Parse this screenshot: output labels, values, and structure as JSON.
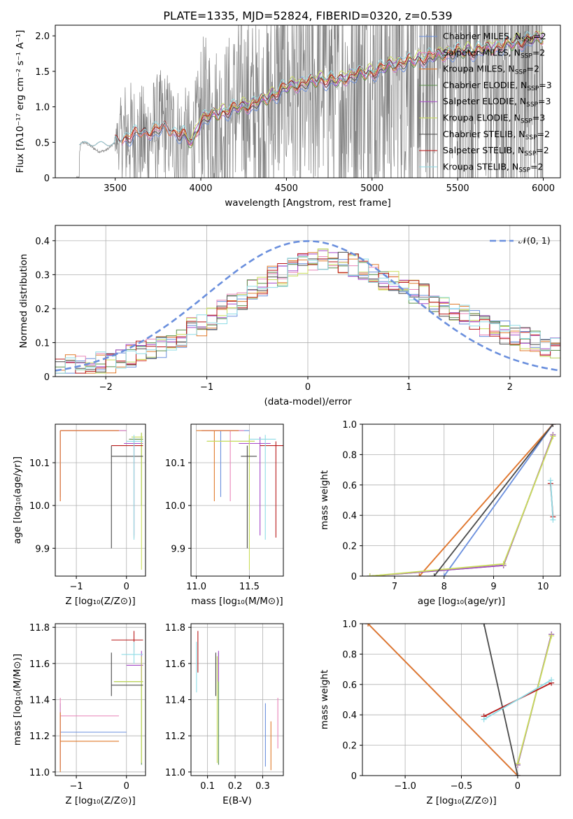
{
  "title": "PLATE=1335, MJD=52824, FIBERID=0320, z=0.539",
  "colors": {
    "Chabrier MILES": "#6a8fdd",
    "Salpeter MILES": "#e883b8",
    "Kroupa MILES": "#e07a2a",
    "Chabrier ELODIE": "#5a8f4a",
    "Salpeter ELODIE": "#a548c8",
    "Kroupa ELODIE": "#c9dd5a",
    "Chabrier STELIB": "#4a4a4a",
    "Salpeter STELIB": "#b81818",
    "Kroupa STELIB": "#8fdce6",
    "data": "#808080",
    "gauss": "#6a8fdd",
    "grid": "#b0b0b0"
  },
  "chart_data": [
    {
      "id": "spectrum",
      "type": "line",
      "xlabel": "wavelength [Angstrom, rest frame]",
      "ylabel": "Flux [fλ10⁻¹⁷ erg cm⁻² s⁻¹ A⁻¹]",
      "xlim": [
        3150,
        6100
      ],
      "ylim": [
        0,
        2.15
      ],
      "xticks": [
        3500,
        4000,
        4500,
        5000,
        5500,
        6000
      ],
      "yticks": [
        0.0,
        0.5,
        1.0,
        1.5,
        2.0
      ],
      "grid": false,
      "legend_position": "upper right",
      "legend": [
        "Chabrier MILES, N_SSP=2",
        "Salpeter MILES, N_SSP=2",
        "Kroupa MILES, N_SSP=2",
        "Chabrier ELODIE, N_SSP=3",
        "Salpeter ELODIE, N_SSP=3",
        "Kroupa ELODIE, N_SSP=3",
        "Chabrier STELIB, N_SSP=2",
        "Salpeter STELIB, N_SSP=2",
        "Kroupa STELIB, N_SSP=2"
      ],
      "model_continuum": {
        "x": [
          3270,
          3300,
          3400,
          3500,
          3550,
          3600,
          3700,
          3800,
          3900,
          3950,
          4000,
          4100,
          4200,
          4300,
          4400,
          4500,
          4600,
          4700,
          4800,
          4900,
          5000,
          5100,
          5200,
          5300,
          5400,
          5500,
          5600,
          5700,
          5800,
          5900,
          6000
        ],
        "y": [
          0.0,
          0.48,
          0.45,
          0.52,
          0.58,
          0.62,
          0.68,
          0.72,
          0.62,
          0.5,
          0.85,
          0.92,
          1.0,
          1.05,
          1.15,
          1.3,
          1.35,
          1.4,
          1.38,
          1.48,
          1.5,
          1.6,
          1.65,
          1.7,
          1.75,
          1.8,
          1.8,
          1.85,
          1.9,
          1.95,
          2.0
        ]
      },
      "data_series": "Observed spectrum (grey), 3270-6000 A, strong noise above 3500 A"
    },
    {
      "id": "residuals",
      "type": "line",
      "xlabel": "(data-model)/error",
      "ylabel": "Normed distribution",
      "xlim": [
        -2.5,
        2.5
      ],
      "ylim": [
        0,
        0.445
      ],
      "xticks": [
        -2,
        -1,
        0,
        1,
        2
      ],
      "yticks": [
        0.0,
        0.1,
        0.2,
        0.3,
        0.4
      ],
      "grid": true,
      "legend_position": "upper right",
      "legend": [
        "𝒩(0, 1)"
      ],
      "gauss": {
        "mu": 0,
        "sigma": 1,
        "style": "dashed"
      },
      "histogram_bins": {
        "start": -2.5,
        "width": 0.1,
        "count": 50
      },
      "histogram_base": [
        0.02,
        0.03,
        0.03,
        0.03,
        0.04,
        0.04,
        0.05,
        0.06,
        0.07,
        0.08,
        0.09,
        0.1,
        0.12,
        0.14,
        0.15,
        0.17,
        0.19,
        0.21,
        0.23,
        0.25,
        0.27,
        0.29,
        0.3,
        0.32,
        0.33,
        0.34,
        0.35,
        0.35,
        0.34,
        0.33,
        0.32,
        0.31,
        0.29,
        0.28,
        0.27,
        0.25,
        0.24,
        0.22,
        0.21,
        0.19,
        0.18,
        0.17,
        0.15,
        0.14,
        0.13,
        0.12,
        0.11,
        0.1,
        0.09,
        0.08
      ]
    },
    {
      "id": "age_vs_Z",
      "type": "scatter",
      "xlabel": "Z [log₁₀(Z/Z⊙)]",
      "ylabel": "age  [log₁₀(age/yr)]",
      "xlim": [
        -1.42,
        0.38
      ],
      "ylim": [
        9.835,
        10.19
      ],
      "xticks": [
        -1,
        0
      ],
      "yticks": [
        9.9,
        10.0,
        10.1
      ],
      "grid": true,
      "errorbars": [
        {
          "m": "Chabrier MILES",
          "x": -1.32,
          "x0": -1.32,
          "x1": 0.0,
          "y": 10.175,
          "y0": 10.02,
          "y1": 10.175
        },
        {
          "m": "Salpeter MILES",
          "x": -1.32,
          "x0": -1.32,
          "x1": 0.0,
          "y": 10.175,
          "y0": 10.01,
          "y1": 10.175
        },
        {
          "m": "Kroupa MILES",
          "x": -1.32,
          "x0": -1.32,
          "x1": -0.15,
          "y": 10.175,
          "y0": 10.01,
          "y1": 10.175
        },
        {
          "m": "Chabrier ELODIE",
          "x": 0.3,
          "x0": 0.05,
          "x1": 0.33,
          "y": 10.155,
          "y0": 10.0,
          "y1": 10.17
        },
        {
          "m": "Salpeter ELODIE",
          "x": 0.15,
          "x0": -0.05,
          "x1": 0.33,
          "y": 10.145,
          "y0": 9.93,
          "y1": 10.16
        },
        {
          "m": "Kroupa ELODIE",
          "x": 0.3,
          "x0": 0.1,
          "x1": 0.33,
          "y": 10.16,
          "y0": 9.85,
          "y1": 10.17
        },
        {
          "m": "Chabrier STELIB",
          "x": -0.3,
          "x0": -0.3,
          "x1": 0.33,
          "y": 10.115,
          "y0": 9.9,
          "y1": 10.14
        },
        {
          "m": "Salpeter STELIB",
          "x": 0.15,
          "x0": -0.3,
          "x1": 0.33,
          "y": 10.14,
          "y0": 9.925,
          "y1": 10.15
        },
        {
          "m": "Kroupa STELIB",
          "x": 0.15,
          "x0": 0.0,
          "x1": 0.33,
          "y": 10.15,
          "y0": 9.92,
          "y1": 10.165
        }
      ]
    },
    {
      "id": "age_vs_mass",
      "type": "scatter",
      "xlabel": "mass [log₁₀(M/M⊙)]",
      "ylabel": "",
      "xlim": [
        10.95,
        11.82
      ],
      "ylim": [
        9.835,
        10.19
      ],
      "xticks": [
        11.0,
        11.5
      ],
      "yticks": [
        9.9,
        10.0,
        10.1
      ],
      "grid": true,
      "errorbars": [
        {
          "m": "Chabrier MILES",
          "x": 11.23,
          "x0": 11.05,
          "x1": 11.5,
          "y": 10.175,
          "y0": 10.02,
          "y1": 10.175
        },
        {
          "m": "Salpeter MILES",
          "x": 11.32,
          "x0": 11.05,
          "x1": 11.45,
          "y": 10.175,
          "y0": 10.01,
          "y1": 10.175
        },
        {
          "m": "Kroupa MILES",
          "x": 11.17,
          "x0": 11.0,
          "x1": 11.4,
          "y": 10.175,
          "y0": 10.01,
          "y1": 10.175
        },
        {
          "m": "Chabrier ELODIE",
          "x": 11.5,
          "x0": 11.1,
          "x1": 11.55,
          "y": 10.15,
          "y0": 9.9,
          "y1": 10.165
        },
        {
          "m": "Salpeter ELODIE",
          "x": 11.6,
          "x0": 11.4,
          "x1": 11.7,
          "y": 10.145,
          "y0": 9.93,
          "y1": 10.16
        },
        {
          "m": "Kroupa ELODIE",
          "x": 11.5,
          "x0": 11.1,
          "x1": 11.55,
          "y": 10.15,
          "y0": 9.85,
          "y1": 10.165
        },
        {
          "m": "Chabrier STELIB",
          "x": 11.48,
          "x0": 11.42,
          "x1": 11.57,
          "y": 10.115,
          "y0": 9.9,
          "y1": 10.14
        },
        {
          "m": "Salpeter STELIB",
          "x": 11.75,
          "x0": 11.6,
          "x1": 11.82,
          "y": 10.14,
          "y0": 9.925,
          "y1": 10.15
        },
        {
          "m": "Kroupa STELIB",
          "x": 11.65,
          "x0": 11.5,
          "x1": 11.75,
          "y": 10.155,
          "y0": 9.92,
          "y1": 10.165
        }
      ]
    },
    {
      "id": "weight_vs_age",
      "type": "line",
      "xlabel": "age  [log₁₀(age/yr)]",
      "ylabel": "mass weight",
      "xlim": [
        6.35,
        10.35
      ],
      "ylim": [
        0,
        1.0
      ],
      "xticks": [
        7,
        8,
        9,
        10
      ],
      "yticks": [
        0.0,
        0.2,
        0.4,
        0.6,
        0.8,
        1.0
      ],
      "grid": true,
      "series": [
        {
          "m": "Chabrier MILES",
          "x": [
            8.0,
            10.2
          ],
          "y": [
            0.0,
            1.0
          ]
        },
        {
          "m": "Salpeter MILES",
          "x": [
            7.5,
            10.2
          ],
          "y": [
            0.0,
            1.0
          ]
        },
        {
          "m": "Kroupa MILES",
          "x": [
            7.5,
            10.2
          ],
          "y": [
            0.0,
            1.0
          ]
        },
        {
          "m": "Chabrier ELODIE",
          "x": [
            6.5,
            9.2,
            10.2
          ],
          "y": [
            0.0,
            0.07,
            0.93
          ]
        },
        {
          "m": "Salpeter ELODIE",
          "x": [
            6.5,
            9.2,
            10.2
          ],
          "y": [
            0.0,
            0.07,
            0.93
          ]
        },
        {
          "m": "Kroupa ELODIE",
          "x": [
            6.5,
            9.2,
            10.2
          ],
          "y": [
            0.0,
            0.08,
            0.92
          ]
        },
        {
          "m": "Chabrier STELIB",
          "x": [
            7.8,
            10.2
          ],
          "y": [
            0.0,
            1.0
          ]
        },
        {
          "m": "Salpeter STELIB",
          "x": [
            10.15,
            10.2
          ],
          "y": [
            0.61,
            0.39
          ]
        },
        {
          "m": "Kroupa STELIB",
          "x": [
            10.15,
            10.2
          ],
          "y": [
            0.63,
            0.37
          ]
        }
      ]
    },
    {
      "id": "mass_vs_Z",
      "type": "scatter",
      "xlabel": "Z [log₁₀(Z/Z⊙)]",
      "ylabel": "mass [log₁₀(M/M⊙)]",
      "xlim": [
        -1.42,
        0.38
      ],
      "ylim": [
        10.98,
        11.82
      ],
      "xticks": [
        -1,
        0
      ],
      "yticks": [
        11.0,
        11.2,
        11.4,
        11.6,
        11.8
      ],
      "grid": true,
      "errorbars": [
        {
          "m": "Chabrier MILES",
          "x": -1.32,
          "x0": -1.32,
          "x1": 0.0,
          "y": 11.22,
          "y0": 11.01,
          "y1": 11.38
        },
        {
          "m": "Salpeter MILES",
          "x": -1.32,
          "x0": -1.32,
          "x1": -0.15,
          "y": 11.31,
          "y0": 11.02,
          "y1": 11.41
        },
        {
          "m": "Kroupa MILES",
          "x": -1.32,
          "x0": -1.32,
          "x1": -0.15,
          "y": 11.17,
          "y0": 11.0,
          "y1": 11.33
        },
        {
          "m": "Chabrier ELODIE",
          "x": 0.3,
          "x0": -0.25,
          "x1": 0.33,
          "y": 11.5,
          "y0": 11.04,
          "y1": 11.64
        },
        {
          "m": "Salpeter ELODIE",
          "x": 0.3,
          "x0": 0.0,
          "x1": 0.33,
          "y": 11.59,
          "y0": 11.5,
          "y1": 11.67
        },
        {
          "m": "Kroupa ELODIE",
          "x": 0.3,
          "x0": -0.25,
          "x1": 0.33,
          "y": 11.5,
          "y0": 11.05,
          "y1": 11.64
        },
        {
          "m": "Chabrier STELIB",
          "x": -0.3,
          "x0": -0.3,
          "x1": 0.33,
          "y": 11.48,
          "y0": 11.42,
          "y1": 11.66
        },
        {
          "m": "Salpeter STELIB",
          "x": 0.15,
          "x0": -0.3,
          "x1": 0.33,
          "y": 11.73,
          "y0": 11.66,
          "y1": 11.78
        },
        {
          "m": "Kroupa STELIB",
          "x": 0.15,
          "x0": -0.1,
          "x1": 0.33,
          "y": 11.65,
          "y0": 11.6,
          "y1": 11.72
        }
      ]
    },
    {
      "id": "mass_vs_ebv",
      "type": "scatter",
      "xlabel": "E(B-V)",
      "ylabel": "",
      "xlim": [
        0.04,
        0.375
      ],
      "ylim": [
        10.98,
        11.82
      ],
      "xticks": [
        0.1,
        0.2,
        0.3
      ],
      "yticks": [
        11.0,
        11.2,
        11.4,
        11.6,
        11.8
      ],
      "grid": true,
      "errorbars": [
        {
          "m": "Chabrier MILES",
          "x": 0.31,
          "y0": 11.03,
          "y1": 11.38
        },
        {
          "m": "Salpeter MILES",
          "x": 0.355,
          "y0": 11.13,
          "y1": 11.41
        },
        {
          "m": "Kroupa MILES",
          "x": 0.33,
          "y0": 11.01,
          "y1": 11.28
        },
        {
          "m": "Chabrier ELODIE",
          "x": 0.14,
          "y0": 11.04,
          "y1": 11.66
        },
        {
          "m": "Salpeter ELODIE",
          "x": 0.14,
          "y0": 11.5,
          "y1": 11.67
        },
        {
          "m": "Kroupa ELODIE",
          "x": 0.135,
          "y0": 11.05,
          "y1": 11.64
        },
        {
          "m": "Chabrier STELIB",
          "x": 0.13,
          "y0": 11.42,
          "y1": 11.66
        },
        {
          "m": "Salpeter STELIB",
          "x": 0.065,
          "y0": 11.55,
          "y1": 11.78
        },
        {
          "m": "Kroupa STELIB",
          "x": 0.06,
          "y0": 11.44,
          "y1": 11.72
        }
      ]
    },
    {
      "id": "weight_vs_Z",
      "type": "line",
      "xlabel": "Z [log₁₀(Z/Z⊙)]",
      "ylabel": "mass weight",
      "xlim": [
        -1.38,
        0.38
      ],
      "ylim": [
        0,
        1.0
      ],
      "xticks": [
        -1.0,
        -0.5,
        0.0
      ],
      "yticks": [
        0.0,
        0.2,
        0.4,
        0.6,
        0.8,
        1.0
      ],
      "grid": true,
      "series": [
        {
          "m": "Chabrier MILES",
          "x": [
            -1.33,
            0.0
          ],
          "y": [
            1.0,
            0.0
          ]
        },
        {
          "m": "Salpeter MILES",
          "x": [
            -1.33,
            0.0
          ],
          "y": [
            1.0,
            0.0
          ]
        },
        {
          "m": "Kroupa MILES",
          "x": [
            -1.33,
            0.0
          ],
          "y": [
            1.0,
            0.0
          ]
        },
        {
          "m": "Chabrier ELODIE",
          "x": [
            0.0,
            0.3
          ],
          "y": [
            0.07,
            0.93
          ]
        },
        {
          "m": "Salpeter ELODIE",
          "x": [
            0.0,
            0.3
          ],
          "y": [
            0.07,
            0.93
          ]
        },
        {
          "m": "Kroupa ELODIE",
          "x": [
            0.0,
            0.3
          ],
          "y": [
            0.08,
            0.92
          ]
        },
        {
          "m": "Chabrier STELIB",
          "x": [
            -0.3,
            0.0
          ],
          "y": [
            1.0,
            0.0
          ]
        },
        {
          "m": "Salpeter STELIB",
          "x": [
            -0.3,
            0.3
          ],
          "y": [
            0.39,
            0.61
          ]
        },
        {
          "m": "Kroupa STELIB",
          "x": [
            -0.3,
            0.3
          ],
          "y": [
            0.37,
            0.63
          ]
        }
      ]
    }
  ]
}
